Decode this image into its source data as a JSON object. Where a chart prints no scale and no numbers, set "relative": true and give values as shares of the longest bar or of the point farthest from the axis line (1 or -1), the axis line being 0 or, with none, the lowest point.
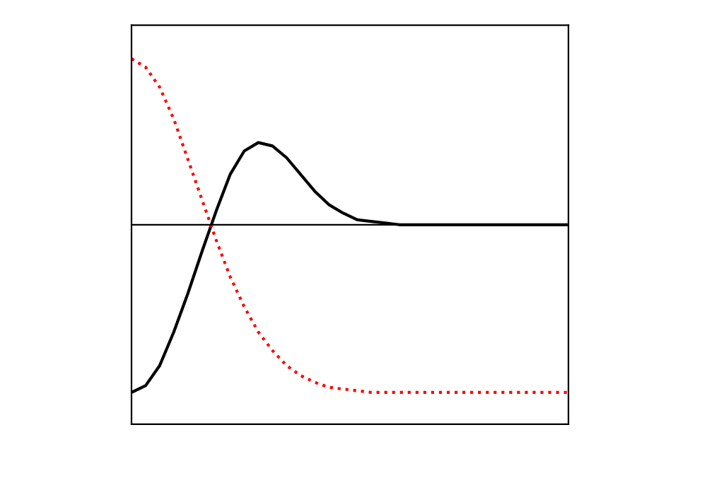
{
  "chart_data": {
    "type": "line",
    "relative": true,
    "grid": false,
    "legend": false,
    "categories": [
      null,
      null,
      null,
      null,
      null,
      null,
      null,
      null,
      null,
      null,
      null,
      null,
      null,
      null,
      null,
      null,
      null,
      null,
      null,
      null,
      null,
      null,
      null,
      null,
      null,
      null,
      null,
      null,
      null,
      null,
      null,
      null
    ],
    "series": [
      {
        "color": "#000000",
        "line_style": "solid",
        "values": [
          -1,
          -0.96,
          -0.84,
          -0.64,
          -0.41,
          -0.16,
          0.08,
          0.3,
          0.44,
          0.49,
          0.47,
          0.4,
          0.3,
          0.2,
          0.12,
          0.07,
          0.03,
          0.02,
          0.01,
          0,
          0,
          0,
          0,
          0,
          0,
          0,
          0,
          0,
          0,
          0,
          0,
          0
        ]
      },
      {
        "color": "#ff0000",
        "line_style": "dotted",
        "values": [
          0.99,
          0.94,
          0.82,
          0.63,
          0.39,
          0.15,
          -0.09,
          -0.31,
          -0.49,
          -0.64,
          -0.75,
          -0.84,
          -0.9,
          -0.94,
          -0.97,
          -0.98,
          -0.99,
          -1,
          -1,
          -1,
          -1,
          -1,
          -1,
          -1,
          -1,
          -1,
          -1,
          -1,
          -1,
          -1,
          -1,
          -1
        ]
      }
    ]
  }
}
